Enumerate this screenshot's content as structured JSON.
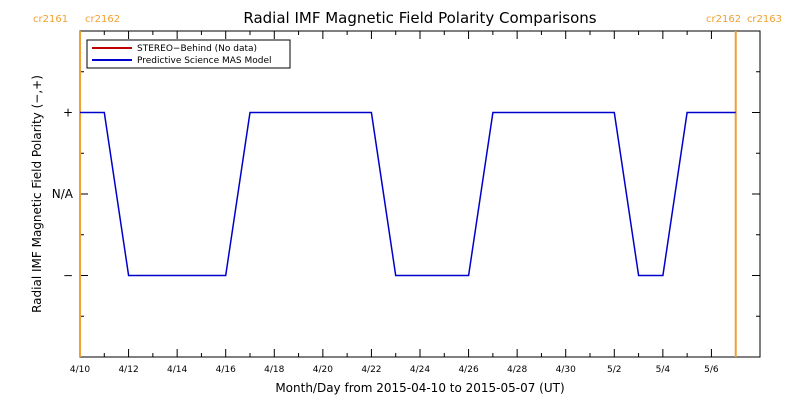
{
  "chart_data": {
    "type": "line",
    "title": "Radial IMF Magnetic Field Polarity Comparisons",
    "xlabel": "Month/Day from 2015-04-10 to 2015-05-07 (UT)",
    "ylabel": "Radial IMF Magnetic Field Polarity (−,+)",
    "x_range": [
      "2015-04-10",
      "2015-05-08"
    ],
    "x_tick_labels": [
      "4/10",
      "4/12",
      "4/14",
      "4/16",
      "4/18",
      "4/20",
      "4/22",
      "4/24",
      "4/26",
      "4/28",
      "4/30",
      "5/2",
      "5/4",
      "5/6"
    ],
    "y_tick_labels": [
      "+",
      "N/A",
      "−"
    ],
    "y_levels": {
      "+": 1,
      "N/A": 0,
      "−": -1
    },
    "ylim": [
      -2,
      2
    ],
    "carrington": {
      "left_labels": [
        "cr2161",
        "cr2162"
      ],
      "right_labels": [
        "cr2162",
        "cr2163"
      ],
      "boundary_dates": [
        "2015-04-10",
        "2015-05-07"
      ],
      "color": "#f0a030"
    },
    "legend_position": "top-left",
    "series": [
      {
        "name": "STEREO−Behind (No data)",
        "color": "#c00000",
        "points": []
      },
      {
        "name": "Predictive Science MAS Model",
        "color": "#0000cc",
        "points": [
          [
            "2015-04-10",
            1
          ],
          [
            "2015-04-11",
            1
          ],
          [
            "2015-04-12",
            -1
          ],
          [
            "2015-04-16",
            -1
          ],
          [
            "2015-04-17",
            1
          ],
          [
            "2015-04-22",
            1
          ],
          [
            "2015-04-23",
            -1
          ],
          [
            "2015-04-26",
            -1
          ],
          [
            "2015-04-27",
            1
          ],
          [
            "2015-05-02",
            1
          ],
          [
            "2015-05-03",
            -1
          ],
          [
            "2015-05-04",
            -1
          ],
          [
            "2015-05-05",
            1
          ],
          [
            "2015-05-07",
            1
          ]
        ]
      }
    ]
  }
}
